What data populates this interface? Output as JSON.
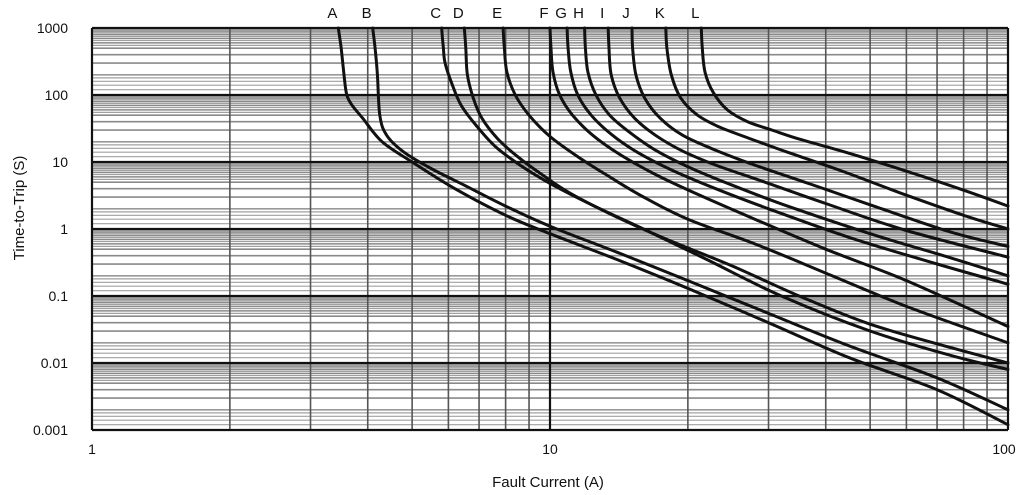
{
  "chart_data": {
    "type": "line",
    "xlabel": "Fault Current (A)",
    "ylabel": "Time-to-Trip (S)",
    "x_scale": "log",
    "y_scale": "log",
    "xlim": [
      1,
      100
    ],
    "ylim": [
      0.001,
      1000
    ],
    "x_ticks": [
      "1",
      "10",
      "100"
    ],
    "y_ticks": [
      "1000",
      "100",
      "10",
      "1",
      "0.1",
      "0.01",
      "0.001"
    ],
    "grid": true,
    "legend": "curve letters at top of each curve",
    "series": [
      {
        "name": "A",
        "x": [
          3.45,
          3.5,
          3.55,
          3.6,
          3.7,
          3.9,
          4.3,
          5,
          6.2,
          8,
          10,
          14,
          20,
          30,
          45,
          70,
          100
        ],
        "y": [
          1000,
          500,
          200,
          100,
          70,
          45,
          20,
          10,
          4,
          1.6,
          0.85,
          0.35,
          0.13,
          0.04,
          0.012,
          0.004,
          0.0012
        ]
      },
      {
        "name": "B",
        "x": [
          4.1,
          4.15,
          4.2,
          4.25,
          4.4,
          4.8,
          5.5,
          6.5,
          8,
          10,
          14,
          20,
          30,
          45,
          70,
          100
        ],
        "y": [
          1000,
          500,
          200,
          50,
          25,
          14,
          8,
          4.5,
          2.2,
          1.1,
          0.45,
          0.17,
          0.055,
          0.018,
          0.006,
          0.002
        ]
      },
      {
        "name": "C",
        "x": [
          5.8,
          5.85,
          5.9,
          6.1,
          6.4,
          6.9,
          7.6,
          8.6,
          10,
          12.5,
          16,
          22,
          32,
          50,
          75,
          100
        ],
        "y": [
          1000,
          500,
          300,
          150,
          70,
          35,
          17,
          9,
          4.8,
          2.2,
          1,
          0.35,
          0.1,
          0.03,
          0.013,
          0.008
        ]
      },
      {
        "name": "D",
        "x": [
          6.5,
          6.55,
          6.6,
          6.8,
          7.1,
          7.7,
          8.5,
          9.6,
          11,
          14,
          18,
          25,
          35,
          50,
          75,
          100
        ],
        "y": [
          1000,
          500,
          200,
          90,
          45,
          22,
          12,
          6.5,
          3.5,
          1.5,
          0.7,
          0.28,
          0.1,
          0.038,
          0.017,
          0.01
        ]
      },
      {
        "name": "E",
        "x": [
          7.9,
          7.95,
          8.05,
          8.4,
          9,
          10,
          11.5,
          13.5,
          16,
          20,
          28,
          40,
          60,
          100
        ],
        "y": [
          1000,
          500,
          220,
          100,
          50,
          24,
          12,
          6,
          3,
          1.4,
          0.6,
          0.22,
          0.07,
          0.02
        ]
      },
      {
        "name": "F",
        "x": [
          10,
          10.05,
          10.15,
          10.5,
          11.2,
          12.4,
          14.2,
          17,
          21,
          28,
          40,
          60,
          100
        ],
        "y": [
          1000,
          500,
          220,
          100,
          50,
          25,
          13,
          6.5,
          3.3,
          1.4,
          0.5,
          0.17,
          0.035
        ]
      },
      {
        "name": "G",
        "x": [
          10.9,
          10.95,
          11.1,
          11.5,
          12.3,
          13.6,
          15.5,
          18.5,
          23,
          30,
          45,
          70,
          100
        ],
        "y": [
          1000,
          500,
          220,
          100,
          50,
          26,
          14,
          7.5,
          4,
          2,
          0.75,
          0.3,
          0.15
        ]
      },
      {
        "name": "H",
        "x": [
          11.9,
          11.95,
          12.1,
          12.6,
          13.5,
          15,
          17,
          20,
          25,
          33,
          50,
          75,
          100
        ],
        "y": [
          1000,
          500,
          220,
          100,
          50,
          27,
          15,
          8.5,
          4.5,
          2.2,
          0.85,
          0.37,
          0.2
        ]
      },
      {
        "name": "I",
        "x": [
          13.4,
          13.45,
          13.6,
          14.2,
          15.3,
          17,
          19.5,
          23,
          30,
          40,
          60,
          100
        ],
        "y": [
          1000,
          500,
          200,
          90,
          45,
          25,
          14.5,
          9,
          4.8,
          2.4,
          0.95,
          0.38
        ]
      },
      {
        "name": "J",
        "x": [
          15.1,
          15.15,
          15.4,
          16.1,
          17.4,
          19.5,
          23,
          28,
          37,
          50,
          75,
          100
        ],
        "y": [
          1000,
          500,
          200,
          90,
          45,
          25,
          15,
          9,
          4.7,
          2.3,
          0.9,
          0.55
        ]
      },
      {
        "name": "K",
        "x": [
          17.9,
          18,
          18.4,
          19.3,
          21,
          23.5,
          27.5,
          33,
          43,
          60,
          80,
          100
        ],
        "y": [
          1000,
          500,
          200,
          90,
          50,
          33,
          22,
          14,
          7.5,
          3.2,
          1.6,
          1
        ]
      },
      {
        "name": "L",
        "x": [
          21.4,
          21.5,
          21.8,
          22.7,
          24.4,
          27,
          30.5,
          35,
          45,
          60,
          80,
          100
        ],
        "y": [
          1000,
          500,
          220,
          110,
          60,
          40,
          30,
          22,
          13.5,
          7.3,
          3.8,
          2.2
        ]
      }
    ]
  }
}
